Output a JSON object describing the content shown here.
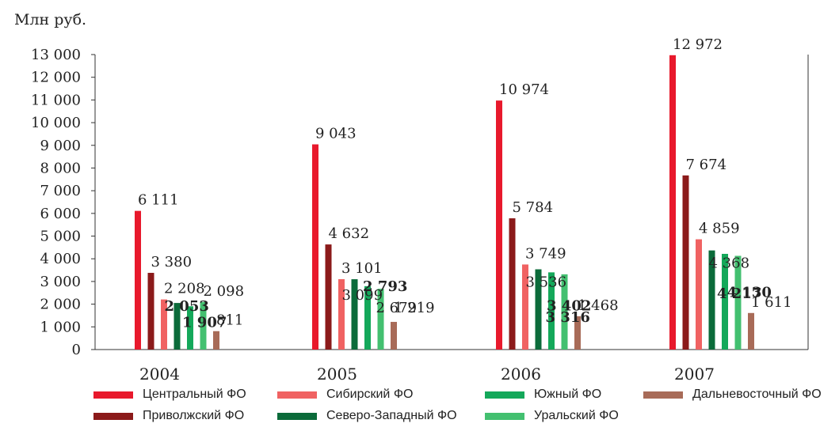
{
  "unit_label": "Млн руб.",
  "chart_data": {
    "type": "bar",
    "categories": [
      "2004",
      "2005",
      "2006",
      "2007"
    ],
    "ylim": [
      0,
      13000
    ],
    "yticks": [
      0,
      1000,
      2000,
      3000,
      4000,
      5000,
      6000,
      7000,
      8000,
      9000,
      10000,
      11000,
      12000,
      13000
    ],
    "ytick_labels": [
      "0",
      "1 000",
      "2 000",
      "3 000",
      "4 000",
      "5 000",
      "6 000",
      "7 000",
      "8 000",
      "9 000",
      "10 000",
      "11 000",
      "12 000",
      "13 000"
    ],
    "grid": false,
    "legend_position": "bottom",
    "series": [
      {
        "name": "Центральный ФО",
        "color": "#e8192c",
        "values": [
          6111,
          9043,
          10974,
          12972
        ],
        "labels": [
          "6 111",
          "9 043",
          "10 974",
          "12 972"
        ]
      },
      {
        "name": "Приволжский ФО",
        "color": "#8b1a1a",
        "values": [
          3380,
          4632,
          5784,
          7674
        ],
        "labels": [
          "3 380",
          "4 632",
          "5 784",
          "7 674"
        ]
      },
      {
        "name": "Сибирский ФО",
        "color": "#f06262",
        "values": [
          2208,
          3101,
          3749,
          4859
        ],
        "labels": [
          "2 208",
          "3 101",
          "3 749",
          "4 859"
        ]
      },
      {
        "name": "Северо-Западный ФО",
        "color": "#0b6b3a",
        "values": [
          2053,
          3099,
          3536,
          4368
        ],
        "labels": [
          "2 053",
          "3 099",
          "3 536",
          "4 368"
        ]
      },
      {
        "name": "Южный ФО",
        "color": "#14a85a",
        "values": [
          1907,
          2793,
          3402,
          4217
        ],
        "labels": [
          "1 907",
          "2 793",
          "3 402",
          "4 217"
        ]
      },
      {
        "name": "Уральский ФО",
        "color": "#43c070",
        "values": [
          2098,
          2679,
          3316,
          4130
        ],
        "labels": [
          "2 098",
          "2 679",
          "3 316",
          "4 130"
        ]
      },
      {
        "name": "Дальневосточный ФО",
        "color": "#a86b58",
        "values": [
          811,
          1219,
          1468,
          1611
        ],
        "labels": [
          "811",
          "1 219",
          "1 468",
          "1 611"
        ]
      }
    ]
  },
  "legend": [
    {
      "label": "Центральный ФО",
      "color": "#e8192c"
    },
    {
      "label": "Сибирский ФО",
      "color": "#f06262"
    },
    {
      "label": "Южный ФО",
      "color": "#14a85a"
    },
    {
      "label": "Дальневосточный ФО",
      "color": "#a86b58"
    },
    {
      "label": "Приволжский ФО",
      "color": "#8b1a1a"
    },
    {
      "label": "Северо-Западный ФО",
      "color": "#0b6b3a"
    },
    {
      "label": "Уральский ФО",
      "color": "#43c070"
    }
  ]
}
